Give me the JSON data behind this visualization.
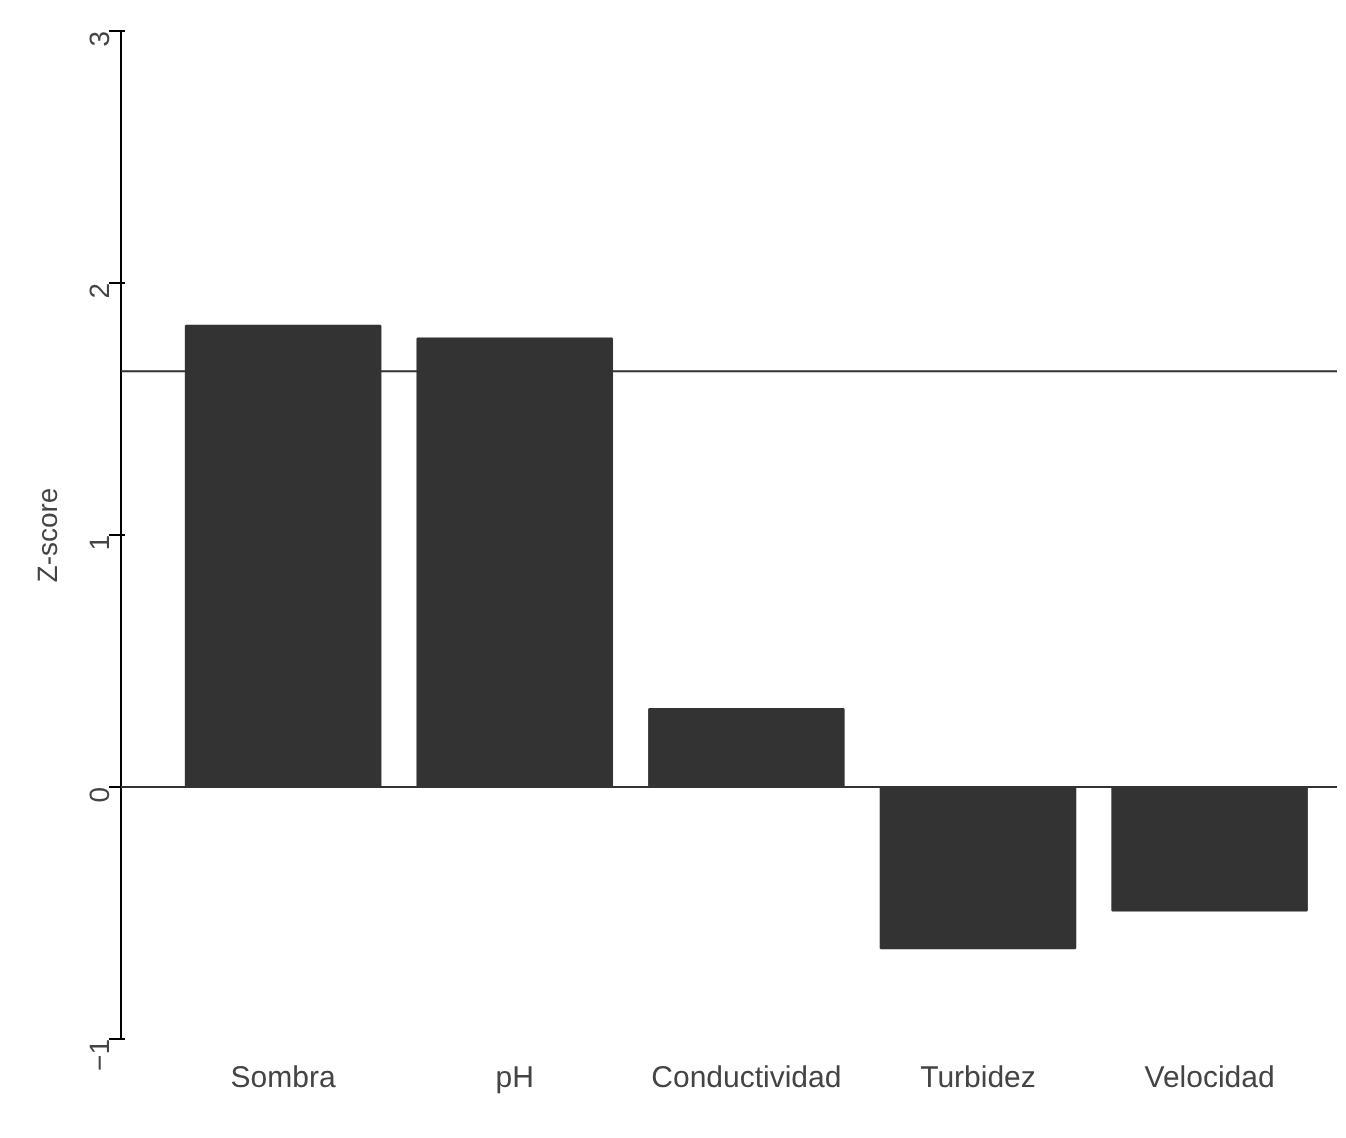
{
  "chart_data": {
    "type": "bar",
    "ylabel": "Z-score",
    "categories": [
      "Sombra",
      "pH",
      "Conductividad",
      "Turbidez",
      "Velocidad"
    ],
    "values": [
      1.83,
      1.78,
      0.31,
      -0.64,
      -0.49
    ],
    "color": "#333333",
    "ylim": [
      -1,
      3
    ],
    "yticks": [
      -1,
      0,
      1,
      2,
      3
    ],
    "grid": false,
    "ref_lines": [
      {
        "axis": "y",
        "value": 0,
        "color": "#333333"
      },
      {
        "axis": "y",
        "value": 1.65,
        "color": "#333333"
      }
    ]
  }
}
